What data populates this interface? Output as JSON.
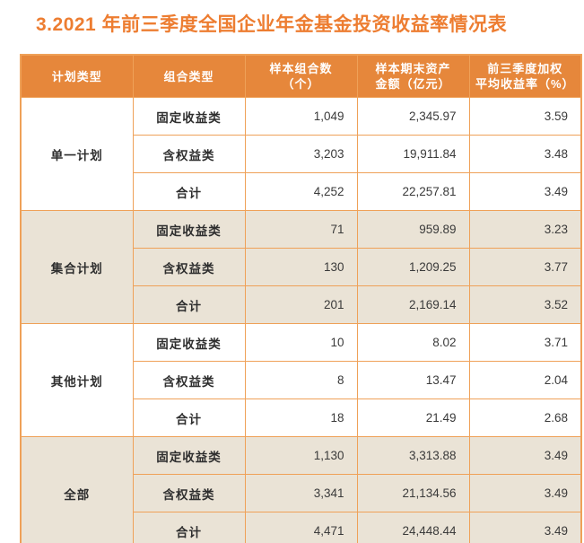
{
  "title": "3.2021 年前三季度全国企业年金基金投资收益率情况表",
  "colors": {
    "title_text": "#ED7D31",
    "header_bg": "#E6873B",
    "header_text": "#FFFFFF",
    "table_border": "#EFA158",
    "alt_group_bg": "#EAE3D6",
    "body_text": "#333333"
  },
  "table": {
    "columns": [
      {
        "label": "计划类型"
      },
      {
        "label": "组合类型"
      },
      {
        "label": "样本组合数\n（个）"
      },
      {
        "label": "样本期末资产\n金额（亿元）"
      },
      {
        "label": "前三季度加权\n平均收益率（%）"
      }
    ],
    "groups": [
      {
        "plan": "单一计划",
        "rows": [
          {
            "type": "固定收益类",
            "count": "1,049",
            "assets": "2,345.97",
            "return": "3.59"
          },
          {
            "type": "含权益类",
            "count": "3,203",
            "assets": "19,911.84",
            "return": "3.48"
          },
          {
            "type": "合计",
            "count": "4,252",
            "assets": "22,257.81",
            "return": "3.49"
          }
        ]
      },
      {
        "plan": "集合计划",
        "rows": [
          {
            "type": "固定收益类",
            "count": "71",
            "assets": "959.89",
            "return": "3.23"
          },
          {
            "type": "含权益类",
            "count": "130",
            "assets": "1,209.25",
            "return": "3.77"
          },
          {
            "type": "合计",
            "count": "201",
            "assets": "2,169.14",
            "return": "3.52"
          }
        ]
      },
      {
        "plan": "其他计划",
        "rows": [
          {
            "type": "固定收益类",
            "count": "10",
            "assets": "8.02",
            "return": "3.71"
          },
          {
            "type": "含权益类",
            "count": "8",
            "assets": "13.47",
            "return": "2.04"
          },
          {
            "type": "合计",
            "count": "18",
            "assets": "21.49",
            "return": "2.68"
          }
        ]
      },
      {
        "plan": "全部",
        "rows": [
          {
            "type": "固定收益类",
            "count": "1,130",
            "assets": "3,313.88",
            "return": "3.49"
          },
          {
            "type": "含权益类",
            "count": "3,341",
            "assets": "21,134.56",
            "return": "3.49"
          },
          {
            "type": "合计",
            "count": "4,471",
            "assets": "24,448.44",
            "return": "3.49"
          }
        ]
      }
    ]
  }
}
